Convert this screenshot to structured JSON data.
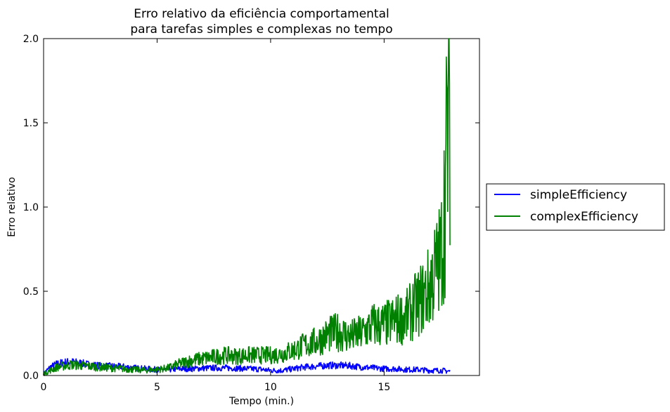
{
  "chart_data": {
    "type": "line",
    "title": [
      "Erro relativo da eficiência comportamental",
      "para tarefas simples e complexas no tempo"
    ],
    "xlabel": "Tempo (min.)",
    "ylabel": "Erro relativo",
    "xlim": [
      0,
      19.2
    ],
    "ylim": [
      0,
      2.0
    ],
    "xticks": [
      0,
      5,
      10,
      15
    ],
    "xtick_labels": [
      "0",
      "5",
      "10",
      "15"
    ],
    "yticks": [
      0,
      0.5,
      1.0,
      1.5,
      2.0
    ],
    "ytick_labels": [
      "0.0",
      "0.5",
      "1.0",
      "1.5",
      "2.0"
    ],
    "grid": false,
    "legend_position": "outside-right",
    "series": [
      {
        "name": "simpleEfficiency",
        "color": "#0000ff",
        "x": [
          0,
          0.3,
          0.6,
          1.0,
          1.3,
          1.6,
          2.0,
          2.5,
          3.0,
          3.5,
          4.0,
          4.5,
          5.0,
          5.5,
          6.0,
          6.5,
          7.0,
          7.5,
          8.0,
          8.5,
          9.0,
          9.5,
          10.0,
          10.5,
          11.0,
          11.5,
          12.0,
          12.5,
          13.0,
          13.5,
          14.0,
          14.5,
          15.0,
          15.5,
          16.0,
          16.5,
          17.0,
          17.5,
          17.9
        ],
        "y": [
          0.01,
          0.05,
          0.07,
          0.08,
          0.08,
          0.075,
          0.065,
          0.058,
          0.055,
          0.052,
          0.045,
          0.04,
          0.035,
          0.035,
          0.04,
          0.04,
          0.043,
          0.045,
          0.045,
          0.043,
          0.04,
          0.038,
          0.03,
          0.03,
          0.04,
          0.05,
          0.055,
          0.06,
          0.06,
          0.058,
          0.05,
          0.045,
          0.04,
          0.04,
          0.035,
          0.035,
          0.03,
          0.03,
          0.025
        ]
      },
      {
        "name": "complexEfficiency",
        "color": "#008000",
        "x": [
          0,
          0.3,
          0.6,
          1.0,
          1.3,
          1.6,
          2.0,
          2.5,
          3.0,
          3.5,
          4.0,
          4.5,
          5.0,
          5.5,
          6.0,
          6.5,
          7.0,
          7.5,
          8.0,
          8.5,
          9.0,
          9.5,
          10.0,
          10.5,
          11.0,
          11.5,
          12.0,
          12.5,
          13.0,
          13.5,
          14.0,
          14.5,
          15.0,
          15.5,
          16.0,
          16.3,
          16.6,
          16.9,
          17.2,
          17.5,
          17.7,
          17.9
        ],
        "y": [
          0.01,
          0.03,
          0.05,
          0.06,
          0.065,
          0.06,
          0.055,
          0.05,
          0.045,
          0.04,
          0.035,
          0.032,
          0.035,
          0.045,
          0.07,
          0.09,
          0.1,
          0.11,
          0.12,
          0.115,
          0.12,
          0.12,
          0.12,
          0.13,
          0.15,
          0.18,
          0.2,
          0.24,
          0.26,
          0.23,
          0.25,
          0.3,
          0.3,
          0.33,
          0.35,
          0.4,
          0.45,
          0.5,
          0.6,
          0.7,
          1.1,
          1.85
        ]
      }
    ]
  }
}
